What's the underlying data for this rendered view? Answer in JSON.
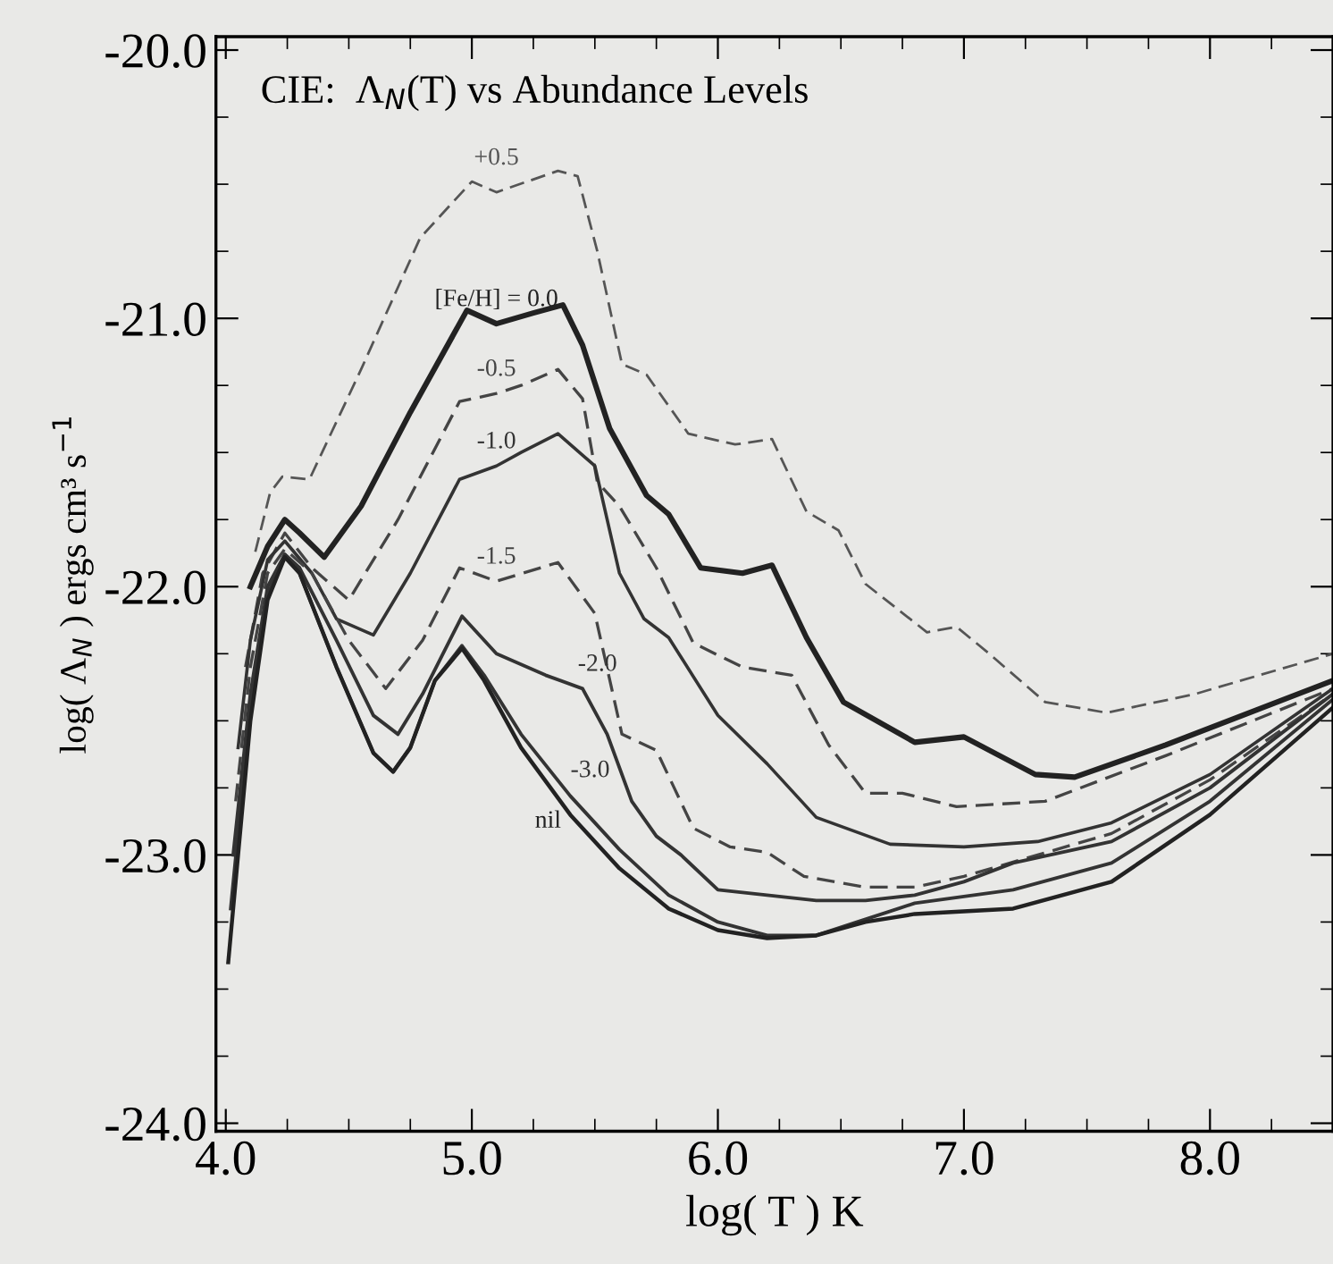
{
  "chart_data": {
    "type": "line",
    "title": "CIE:  Λ$_{N}$(T) vs Abundance Levels",
    "xlabel": "log( T ) K",
    "ylabel": "log( Λ$_{N}$ ) ergs cm³ s$^{−1}$",
    "xlim": [
      3.96,
      8.5
    ],
    "ylim": [
      -24.03,
      -19.95
    ],
    "xticks": [
      {
        "value": 4.0,
        "label": "4.0"
      },
      {
        "value": 5.0,
        "label": "5.0"
      },
      {
        "value": 6.0,
        "label": "6.0"
      },
      {
        "value": 7.0,
        "label": "7.0"
      },
      {
        "value": 8.0,
        "label": "8.0"
      }
    ],
    "yticks": [
      {
        "value": -20.0,
        "label": "-20.0"
      },
      {
        "value": -21.0,
        "label": "-21.0"
      },
      {
        "value": -22.0,
        "label": "-22.0"
      },
      {
        "value": -23.0,
        "label": "-23.0"
      },
      {
        "value": -24.0,
        "label": "-24.0"
      }
    ],
    "grid": false,
    "legend": false,
    "marker": "none",
    "series": [
      {
        "name": "+0.5",
        "color": "#555555",
        "line_style": "dashed",
        "x": [
          4.12,
          4.18,
          4.23,
          4.34,
          4.55,
          4.79,
          5.0,
          5.1,
          5.35,
          5.43,
          5.51,
          5.61,
          5.71,
          5.88,
          6.07,
          6.22,
          6.36,
          6.49,
          6.6,
          6.85,
          6.97,
          7.09,
          7.33,
          7.58,
          7.94,
          8.5
        ],
        "values": [
          -21.87,
          -21.65,
          -21.59,
          -21.6,
          -21.19,
          -20.7,
          -20.49,
          -20.53,
          -20.45,
          -20.47,
          -20.75,
          -21.17,
          -21.21,
          -21.43,
          -21.47,
          -21.45,
          -21.72,
          -21.79,
          -21.99,
          -22.17,
          -22.15,
          -22.24,
          -22.43,
          -22.47,
          -22.4,
          -22.25
        ]
      },
      {
        "name": "[Fe/H] = 0.0",
        "color": "#222222",
        "line_style": "solid",
        "x": [
          4.1,
          4.17,
          4.24,
          4.3,
          4.4,
          4.55,
          4.75,
          4.98,
          5.1,
          5.25,
          5.37,
          5.45,
          5.56,
          5.71,
          5.8,
          5.93,
          6.1,
          6.22,
          6.36,
          6.51,
          6.8,
          7.0,
          7.29,
          7.45,
          7.82,
          8.5
        ],
        "values": [
          -22.0,
          -21.85,
          -21.75,
          -21.8,
          -21.89,
          -21.7,
          -21.35,
          -20.97,
          -21.02,
          -20.98,
          -20.95,
          -21.1,
          -21.41,
          -21.66,
          -21.73,
          -21.93,
          -21.95,
          -21.92,
          -22.19,
          -22.43,
          -22.58,
          -22.56,
          -22.7,
          -22.71,
          -22.59,
          -22.35
        ]
      },
      {
        "name": "-0.5",
        "color": "#444444",
        "line_style": "dashed",
        "x": [
          4.08,
          4.15,
          4.24,
          4.35,
          4.5,
          4.7,
          4.95,
          5.1,
          5.2,
          5.35,
          5.45,
          5.51,
          5.6,
          5.75,
          5.9,
          6.1,
          6.3,
          6.45,
          6.6,
          6.75,
          6.97,
          7.33,
          7.82,
          8.5
        ],
        "values": [
          -22.3,
          -21.95,
          -21.8,
          -21.93,
          -22.05,
          -21.75,
          -21.31,
          -21.28,
          -21.25,
          -21.19,
          -21.3,
          -21.61,
          -21.7,
          -21.93,
          -22.21,
          -22.3,
          -22.33,
          -22.59,
          -22.77,
          -22.77,
          -22.82,
          -22.8,
          -22.63,
          -22.38
        ]
      },
      {
        "name": "-1.0",
        "color": "#333333",
        "line_style": "solid",
        "x": [
          4.05,
          4.1,
          4.17,
          4.24,
          4.35,
          4.45,
          4.6,
          4.75,
          4.95,
          5.1,
          5.2,
          5.35,
          5.5,
          5.6,
          5.7,
          5.8,
          6.0,
          6.2,
          6.4,
          6.7,
          7.0,
          7.3,
          7.6,
          8.0,
          8.5
        ],
        "values": [
          -22.6,
          -22.2,
          -21.9,
          -21.83,
          -21.95,
          -22.12,
          -22.18,
          -21.95,
          -21.6,
          -21.55,
          -21.5,
          -21.43,
          -21.55,
          -21.95,
          -22.12,
          -22.19,
          -22.48,
          -22.66,
          -22.86,
          -22.96,
          -22.97,
          -22.95,
          -22.88,
          -22.7,
          -22.38
        ]
      },
      {
        "name": "-1.5",
        "color": "#444444",
        "line_style": "dashed",
        "x": [
          4.04,
          4.1,
          4.17,
          4.24,
          4.35,
          4.5,
          4.65,
          4.8,
          4.95,
          5.1,
          5.35,
          5.5,
          5.61,
          5.75,
          5.9,
          6.05,
          6.2,
          6.35,
          6.6,
          6.8,
          7.0,
          7.3,
          7.6,
          8.0,
          8.5
        ],
        "values": [
          -22.8,
          -22.3,
          -21.95,
          -21.86,
          -21.95,
          -22.2,
          -22.38,
          -22.2,
          -21.93,
          -21.98,
          -21.91,
          -22.1,
          -22.55,
          -22.61,
          -22.9,
          -22.97,
          -22.99,
          -23.08,
          -23.12,
          -23.12,
          -23.08,
          -23.0,
          -22.92,
          -22.72,
          -22.4
        ]
      },
      {
        "name": "-2.0",
        "color": "#333333",
        "line_style": "solid",
        "x": [
          4.03,
          4.1,
          4.17,
          4.24,
          4.3,
          4.45,
          4.6,
          4.7,
          4.8,
          4.96,
          5.1,
          5.3,
          5.45,
          5.55,
          5.65,
          5.75,
          5.85,
          6.0,
          6.2,
          6.4,
          6.6,
          6.8,
          7.0,
          7.2,
          7.6,
          8.0,
          8.5
        ],
        "values": [
          -23.0,
          -22.4,
          -22.0,
          -21.88,
          -21.93,
          -22.2,
          -22.48,
          -22.55,
          -22.4,
          -22.11,
          -22.25,
          -22.33,
          -22.38,
          -22.55,
          -22.8,
          -22.93,
          -23.0,
          -23.13,
          -23.15,
          -23.17,
          -23.17,
          -23.15,
          -23.1,
          -23.03,
          -22.95,
          -22.75,
          -22.4
        ]
      },
      {
        "name": "-3.0",
        "color": "#333333",
        "line_style": "solid",
        "x": [
          4.02,
          4.1,
          4.17,
          4.24,
          4.3,
          4.45,
          4.6,
          4.68,
          4.75,
          4.85,
          4.96,
          5.05,
          5.2,
          5.4,
          5.6,
          5.8,
          6.0,
          6.2,
          6.4,
          6.6,
          6.8,
          7.2,
          7.6,
          8.0,
          8.5
        ],
        "values": [
          -23.2,
          -22.45,
          -22.03,
          -21.88,
          -21.95,
          -22.3,
          -22.62,
          -22.69,
          -22.6,
          -22.35,
          -22.22,
          -22.33,
          -22.55,
          -22.78,
          -22.98,
          -23.15,
          -23.25,
          -23.3,
          -23.3,
          -23.24,
          -23.18,
          -23.13,
          -23.03,
          -22.8,
          -22.42
        ]
      },
      {
        "name": "nil",
        "color": "#222222",
        "line_style": "solid",
        "x": [
          4.01,
          4.1,
          4.17,
          4.24,
          4.3,
          4.45,
          4.6,
          4.68,
          4.75,
          4.85,
          4.96,
          5.05,
          5.2,
          5.4,
          5.6,
          5.8,
          6.0,
          6.2,
          6.4,
          6.6,
          6.8,
          7.2,
          7.6,
          8.0,
          8.5
        ],
        "values": [
          -23.4,
          -22.5,
          -22.05,
          -21.89,
          -21.95,
          -22.3,
          -22.62,
          -22.69,
          -22.6,
          -22.35,
          -22.23,
          -22.35,
          -22.6,
          -22.85,
          -23.05,
          -23.2,
          -23.28,
          -23.31,
          -23.3,
          -23.25,
          -23.22,
          -23.2,
          -23.1,
          -22.85,
          -22.45
        ]
      }
    ]
  }
}
